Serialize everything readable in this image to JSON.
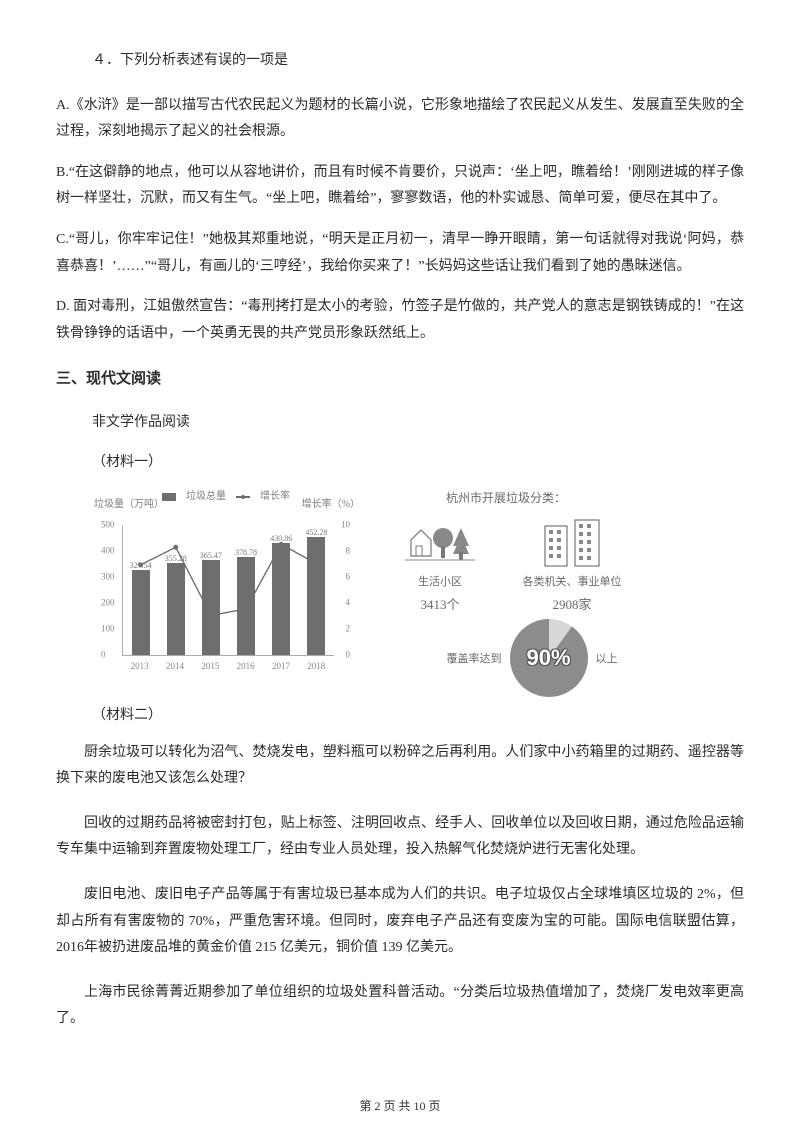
{
  "q4": {
    "stem": "４．下列分析表述有误的一项是",
    "A": "A.《水浒》是一部以描写古代农民起义为题材的长篇小说，它形象地描绘了农民起义从发生、发展直至失败的全过程，深刻地揭示了起义的社会根源。",
    "B": "B.“在这僻静的地点，他可以从容地讲价，而且有时候不肯要价，只说声：‘坐上吧，瞧着给！’刚刚进城的样子像树一样坚壮，沉默，而又有生气。“坐上吧，瞧着给”，寥寥数语，他的朴实诚恳、简单可爱，便尽在其中了。",
    "C": "C.“哥儿，你牢牢记住！”她极其郑重地说，“明天是正月初一，清早一睁开眼睛，第一句话就得对我说‘阿妈，恭喜恭喜！’……”“哥儿，有画儿的‘三哼经’，我给你买来了！”长妈妈这些话让我们看到了她的愚昧迷信。",
    "D": "D. 面对毒刑，江姐傲然宣告：“毒刑拷打是太小的考验，竹签子是竹做的，共产党人的意志是钢铁铸成的！”在这铁骨铮铮的话语中，一个英勇无畏的共产党员形象跃然纸上。"
  },
  "section3": "三、现代文阅读",
  "reading_intro": "非文学作品阅读",
  "mat1_label": "（材料一）",
  "mat2_label": "（材料二）",
  "chart": {
    "legend_total": "垃圾总量",
    "legend_rate": "增长率",
    "y_left_title": "垃圾量（万吨）",
    "y_right_title": "增长率（%）",
    "y_left_ticks": [
      0,
      100,
      200,
      300,
      400,
      500
    ],
    "y_right_ticks": [
      0,
      2,
      4,
      6,
      8,
      10
    ],
    "years": [
      "2013",
      "2014",
      "2015",
      "2016",
      "2017",
      "2018"
    ],
    "bar_values": [
      327.54,
      355.28,
      365.47,
      378.78,
      430.86,
      452.28
    ],
    "bar_labels": [
      "327.54",
      "355.28",
      "365.47",
      "378.78",
      "430.86",
      "452.28"
    ],
    "rate_values": [
      6.99,
      8.35,
      3.06,
      3.58,
      8.58,
      7.07
    ],
    "bar_color": "#6e6e6e",
    "line_color": "#6e6e6e",
    "grid_color": "#cccccc",
    "y_left_max": 500,
    "y_right_max": 10
  },
  "infographic": {
    "title": "杭州市开展垃圾分类：",
    "left_label": "生活小区",
    "left_count": "3413个",
    "right_label": "各类机关、事业单位",
    "right_count": "2908家",
    "pie_percent": "90%",
    "pie_caption_prefix": "覆盖率达到",
    "pie_caption_suffix": "以上"
  },
  "paras": {
    "p1": "厨余垃圾可以转化为沼气、焚烧发电，塑料瓶可以粉碎之后再利用。人们家中小药箱里的过期药、遥控器等换下来的废电池又该怎么处理？",
    "p2": "回收的过期药品将被密封打包，贴上标签、注明回收点、经手人、回收单位以及回收日期，通过危险品运输专车集中运输到弃置废物处理工厂，经由专业人员处理，投入热解气化焚烧炉进行无害化处理。",
    "p3": "废旧电池、废旧电子产品等属于有害垃圾已基本成为人们的共识。电子垃圾仅占全球堆填区垃圾的 2%，但却占所有有害废物的 70%，严重危害环境。但同时，废弃电子产品还有变废为宝的可能。国际电信联盟估算，2016年被扔进废品堆的黄金价值 215 亿美元，铜价值 139 亿美元。",
    "p4": "上海市民徐菁菁近期参加了单位组织的垃圾处置科普活动。“分类后垃圾热值增加了，焚烧厂发电效率更高了。"
  },
  "footer": "第 2 页 共 10 页"
}
